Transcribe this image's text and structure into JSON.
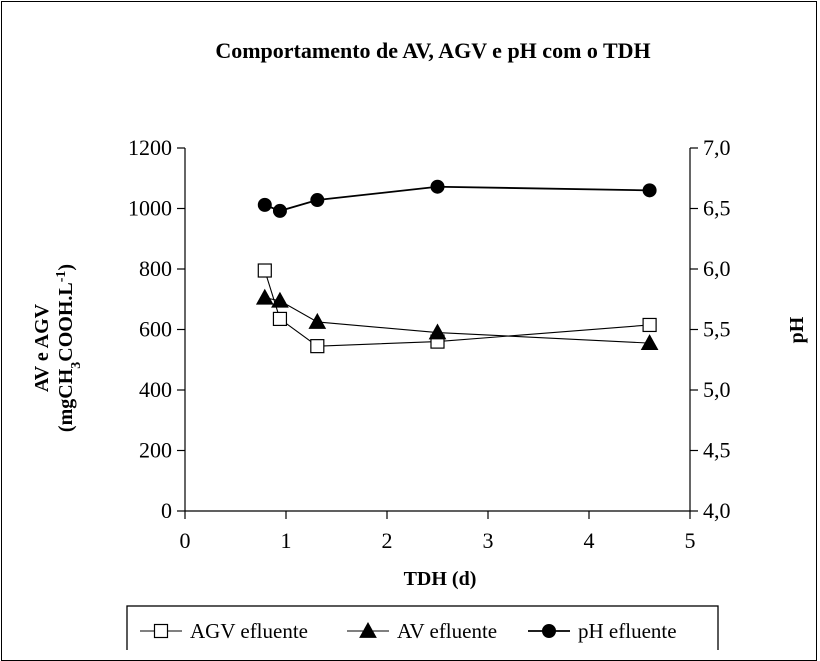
{
  "chart_data": {
    "type": "line",
    "title": "Comportamento de  AV, AGV e pH com o TDH",
    "xlabel": "TDH (d)",
    "ylabel_line1": "AV e AGV",
    "ylabel_line2_prefix": "(mgCH",
    "ylabel_line2_sub": "3",
    "ylabel_line2_mid": "COOH.L",
    "ylabel_line2_sup": "-1",
    "ylabel_line2_suffix": ")",
    "y2label": "pH",
    "xlim": [
      0,
      5
    ],
    "ylim": [
      0,
      1200
    ],
    "y2lim": [
      4.0,
      7.0
    ],
    "xticks": [
      "0",
      "1",
      "2",
      "3",
      "4",
      "5"
    ],
    "yticks": [
      "0",
      "200",
      "400",
      "600",
      "800",
      "1000",
      "1200"
    ],
    "y2ticks": [
      "4,0",
      "4,5",
      "5,0",
      "5,5",
      "6,0",
      "6,5",
      "7,0"
    ],
    "grid": false,
    "legend_position": "bottom",
    "series": [
      {
        "name": "AGV efluente",
        "axis": "left",
        "marker": "open-square",
        "x": [
          0.79,
          0.94,
          1.31,
          2.5,
          4.6
        ],
        "y": [
          795,
          635,
          545,
          560,
          615
        ]
      },
      {
        "name": "AV efluente",
        "axis": "left",
        "marker": "filled-triangle",
        "x": [
          0.79,
          0.94,
          1.31,
          2.5,
          4.6
        ],
        "y": [
          705,
          695,
          625,
          590,
          555
        ]
      },
      {
        "name": "pH efluente",
        "axis": "right",
        "marker": "filled-circle",
        "x": [
          0.79,
          0.94,
          1.31,
          2.5,
          4.6
        ],
        "y": [
          6.53,
          6.48,
          6.57,
          6.68,
          6.65
        ]
      }
    ]
  }
}
